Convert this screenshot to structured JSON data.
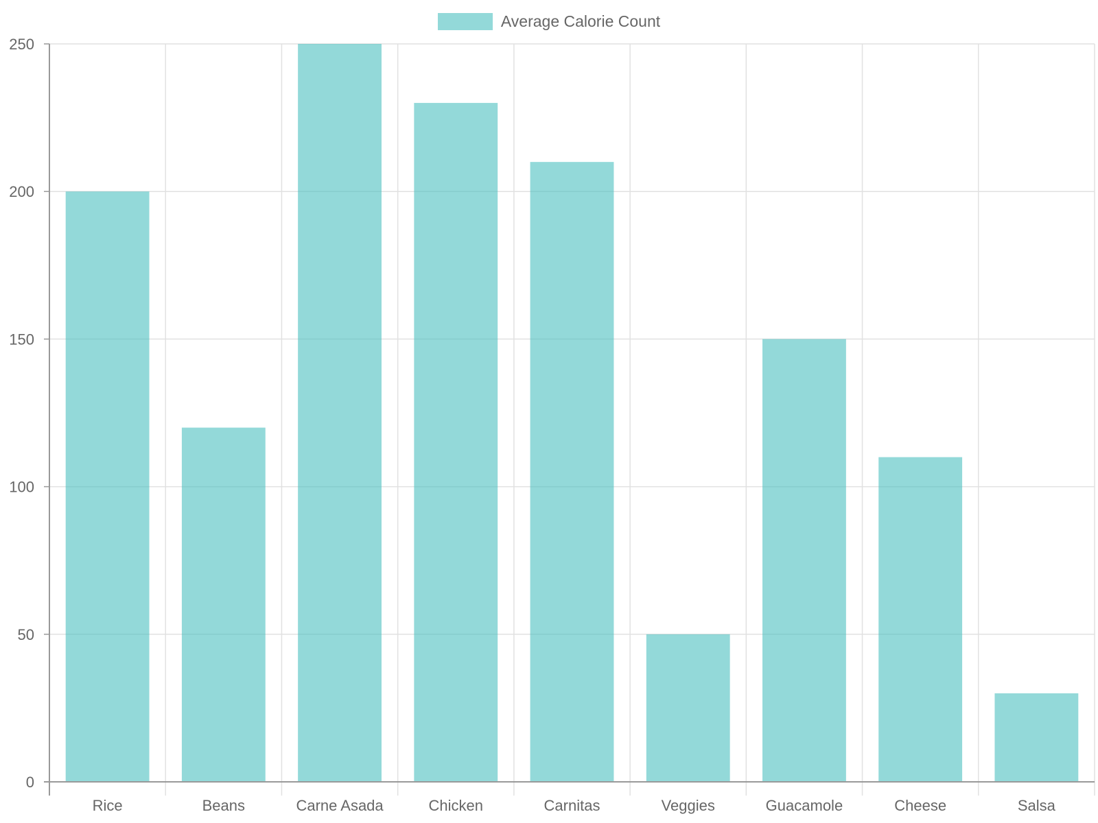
{
  "legend": {
    "label": "Average Calorie Count",
    "swatch_color": "rgba(75, 192, 192, 0.6)"
  },
  "chart_data": {
    "type": "bar",
    "categories": [
      "Rice",
      "Beans",
      "Carne Asada",
      "Chicken",
      "Carnitas",
      "Veggies",
      "Guacamole",
      "Cheese",
      "Salsa"
    ],
    "series": [
      {
        "name": "Average Calorie Count",
        "values": [
          200,
          120,
          250,
          230,
          210,
          50,
          150,
          110,
          30
        ]
      }
    ],
    "yticks": [
      0,
      50,
      100,
      150,
      200,
      250
    ],
    "ylim": [
      0,
      250
    ],
    "grid": true,
    "legend_position": "top-center",
    "colors": {
      "bar_fill": "rgba(75, 192, 192, 0.6)",
      "grid": "#e1e1e1",
      "axis": "#999999",
      "text": "#666666"
    }
  }
}
